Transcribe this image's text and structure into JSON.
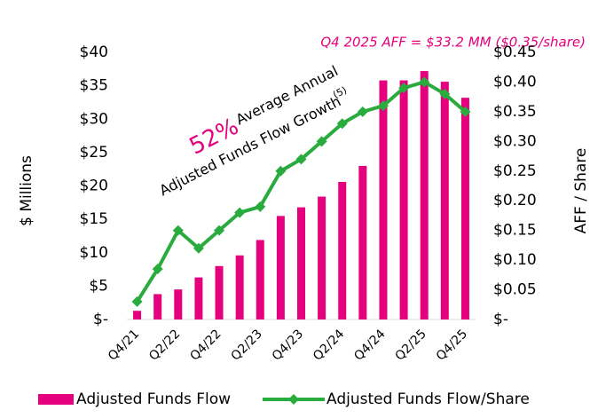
{
  "chart_data": {
    "type": "bar_line",
    "annotation_top": "Q4 2025 AFF = $33.2 MM ($0.35/share)",
    "growth_annotation": {
      "highlight": "52%",
      "line1": "Average Annual",
      "line2": "Adjusted Funds Flow Growth",
      "footnote": "(5)"
    },
    "ylabel": "$ Millions",
    "y2label": "AFF / Share",
    "categories": [
      "Q4/21",
      null,
      "Q2/22",
      null,
      "Q4/22",
      null,
      "Q2/23",
      null,
      "Q4/23",
      null,
      "Q2/24",
      null,
      "Q4/24",
      null,
      "Q2/25",
      null,
      "Q4/25"
    ],
    "series": [
      {
        "name": "Adjusted Funds Flow",
        "type": "bar",
        "color": "#e5007e",
        "values": [
          1.3,
          3.8,
          4.5,
          6.3,
          8.0,
          9.6,
          11.9,
          15.5,
          16.8,
          18.4,
          20.6,
          23.0,
          35.8,
          35.8,
          37.2,
          35.6,
          33.2
        ]
      },
      {
        "name": "Adjusted Funds Flow/Share",
        "type": "line",
        "axis": "y2",
        "color": "#2aab3e",
        "values": [
          0.03,
          0.085,
          0.15,
          0.12,
          0.15,
          0.18,
          0.19,
          0.25,
          0.27,
          0.3,
          0.33,
          0.35,
          0.36,
          0.39,
          0.4,
          0.38,
          0.35
        ]
      }
    ],
    "ylim": [
      0,
      40
    ],
    "yticks": [
      {
        "value": 0,
        "label": "$-"
      },
      {
        "value": 5,
        "label": "$5"
      },
      {
        "value": 10,
        "label": "$10"
      },
      {
        "value": 15,
        "label": "$15"
      },
      {
        "value": 20,
        "label": "$20"
      },
      {
        "value": 25,
        "label": "$25"
      },
      {
        "value": 30,
        "label": "$30"
      },
      {
        "value": 35,
        "label": "$35"
      },
      {
        "value": 40,
        "label": "$40"
      }
    ],
    "y2lim": [
      0,
      0.45
    ],
    "y2ticks": [
      {
        "value": 0,
        "label": "$-"
      },
      {
        "value": 0.05,
        "label": "$0.05"
      },
      {
        "value": 0.1,
        "label": "$0.10"
      },
      {
        "value": 0.15,
        "label": "$0.15"
      },
      {
        "value": 0.2,
        "label": "$0.20"
      },
      {
        "value": 0.25,
        "label": "$0.25"
      },
      {
        "value": 0.3,
        "label": "$0.30"
      },
      {
        "value": 0.35,
        "label": "$0.35"
      },
      {
        "value": 0.4,
        "label": "$0.40"
      },
      {
        "value": 0.45,
        "label": "$0.45"
      }
    ],
    "legend": "bottom"
  }
}
